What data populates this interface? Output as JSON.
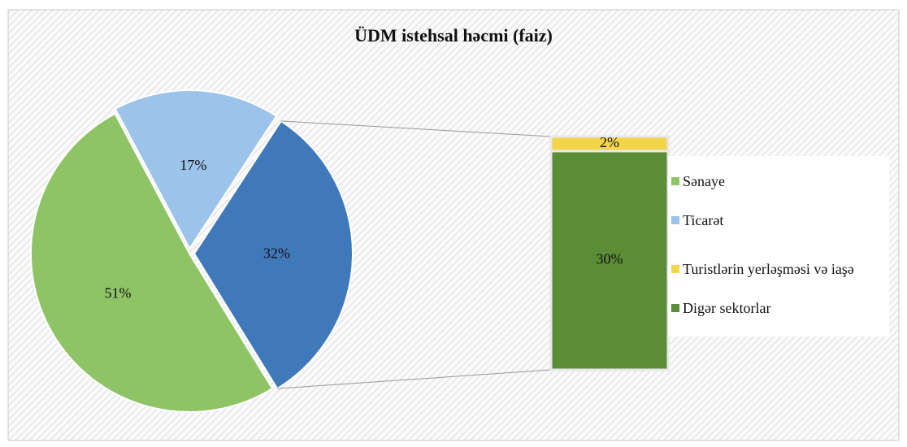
{
  "chart_data": {
    "type": "pie-of-bar",
    "title": "ÜDM istehsal həcmi (faiz)",
    "categories": [
      "Sənaye",
      "Ticarət",
      "Turistlərin yerləşməsi və iaşə",
      "Digər sektorlar"
    ],
    "values": [
      51,
      17,
      2,
      30
    ],
    "value_labels": [
      "51%",
      "17%",
      "2%",
      "30%"
    ],
    "colors": [
      "#8fc466",
      "#9cc3ea",
      "#f4d54a",
      "#5b8c36"
    ],
    "in_bar": [
      false,
      false,
      true,
      true
    ],
    "other_value": 32,
    "other_label": "32%",
    "other_color": "#4079ba"
  }
}
